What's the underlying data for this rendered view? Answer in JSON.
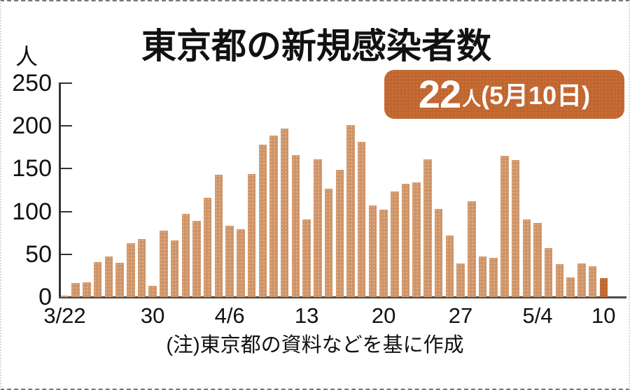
{
  "page": {
    "title": "東京都の新規感染者数",
    "note": "(注)東京都の資料などを基に作成"
  },
  "badge": {
    "value": "22",
    "unit": "人",
    "date": "(5月10日)"
  },
  "chart_data": {
    "type": "bar",
    "title": "東京都の新規感染者数",
    "xlabel": "",
    "ylabel": "人",
    "ylim": [
      0,
      250
    ],
    "yticks": [
      0,
      50,
      100,
      150,
      200,
      250
    ],
    "grid": false,
    "legend": false,
    "categories": [
      "3/22",
      "3/23",
      "3/24",
      "3/25",
      "3/26",
      "3/27",
      "3/28",
      "3/29",
      "3/30",
      "3/31",
      "4/1",
      "4/2",
      "4/3",
      "4/4",
      "4/5",
      "4/6",
      "4/7",
      "4/8",
      "4/9",
      "4/10",
      "4/11",
      "4/12",
      "4/13",
      "4/14",
      "4/15",
      "4/16",
      "4/17",
      "4/18",
      "4/19",
      "4/20",
      "4/21",
      "4/22",
      "4/23",
      "4/24",
      "4/25",
      "4/26",
      "4/27",
      "4/28",
      "4/29",
      "4/30",
      "5/1",
      "5/2",
      "5/3",
      "5/4",
      "5/5",
      "5/6",
      "5/7",
      "5/8",
      "5/9",
      "5/10"
    ],
    "values": [
      2,
      16,
      17,
      41,
      47,
      40,
      63,
      68,
      13,
      78,
      66,
      97,
      89,
      116,
      143,
      83,
      79,
      144,
      178,
      189,
      197,
      166,
      91,
      161,
      127,
      149,
      201,
      181,
      107,
      102,
      123,
      132,
      134,
      161,
      103,
      72,
      39,
      112,
      47,
      46,
      165,
      160,
      91,
      87,
      57,
      38,
      23,
      39,
      36,
      22
    ],
    "xtick_indices": [
      0,
      8,
      15,
      22,
      29,
      36,
      43,
      49
    ],
    "xtick_labels": [
      "3/22",
      "30",
      "4/6",
      "13",
      "20",
      "27",
      "5/4",
      "10"
    ],
    "highlight_index": 49,
    "highlight_label": "22人(5月10日)",
    "colors": {
      "bar": "#cf9468",
      "bar_dot": "#deb088",
      "highlight": "#c1662f",
      "axis": "#333333",
      "text": "#111111"
    }
  }
}
